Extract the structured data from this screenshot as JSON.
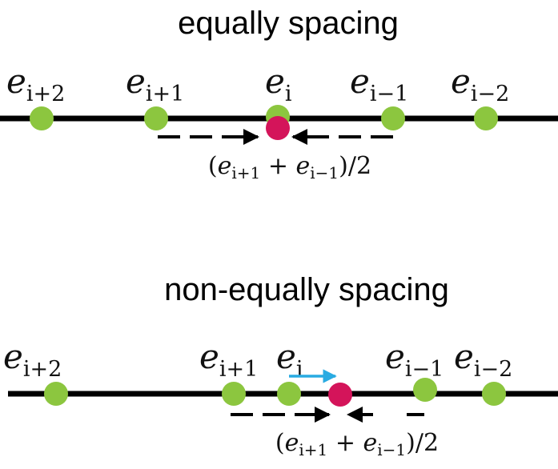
{
  "panels": [
    {
      "id": "equal",
      "title": "equally spacing",
      "labels": [
        {
          "var": "e",
          "sub": "i+2"
        },
        {
          "var": "e",
          "sub": "i+1"
        },
        {
          "var": "e",
          "sub": "i"
        },
        {
          "var": "e",
          "sub": "i−1"
        },
        {
          "var": "e",
          "sub": "i−2"
        }
      ],
      "midpoint_label": {
        "open": "(",
        "a": "e",
        "a_sub": "i+1",
        "plus": " + ",
        "b": "e",
        "b_sub": "i−1",
        "close": ")/2"
      }
    },
    {
      "id": "nonequal",
      "title": "non-equally spacing",
      "labels": [
        {
          "var": "e",
          "sub": "i+2"
        },
        {
          "var": "e",
          "sub": "i+1"
        },
        {
          "var": "e",
          "sub": "i"
        },
        {
          "var": "e",
          "sub": "i−1"
        },
        {
          "var": "e",
          "sub": "i−2"
        }
      ],
      "midpoint_label": {
        "open": "(",
        "a": "e",
        "a_sub": "i+1",
        "plus": " + ",
        "b": "e",
        "b_sub": "i−1",
        "close": ")/2"
      }
    }
  ],
  "colors": {
    "line": "#000000",
    "point": "#8cc63f",
    "midpoint": "#d4145a",
    "shift_arrow": "#29abe2"
  }
}
